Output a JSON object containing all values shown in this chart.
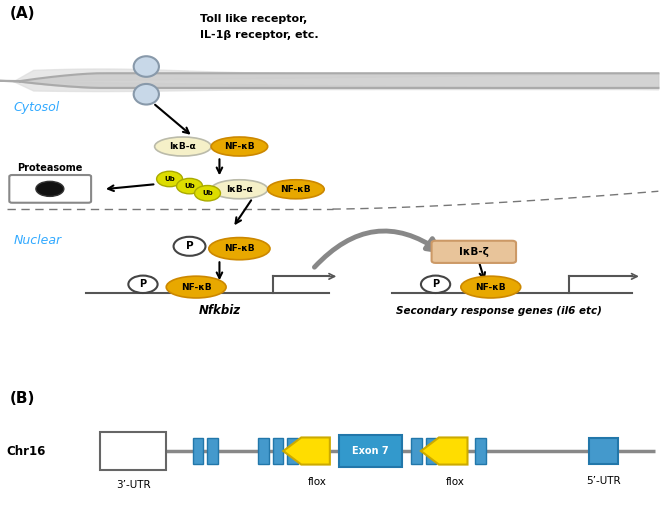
{
  "fig_width": 6.65,
  "fig_height": 5.21,
  "dpi": 100,
  "bg_color": "#ffffff",
  "panel_A_label": "(A)",
  "panel_B_label": "(B)",
  "cytosol_label": "Cytosol",
  "nuclear_label": "Nuclear",
  "proteasome_label": "Proteasome",
  "receptor_text1": "Toll like receptor,",
  "receptor_text2": "IL-1β receptor, etc.",
  "nfkb_color": "#E8A800",
  "ikba_color": "#F5F0C8",
  "ub_color": "#DDDD00",
  "ikbz_color": "#E8C49A",
  "p_color": "#ffffff",
  "blue_exon_color": "#4499CC",
  "yellow_arrow_color": "#FFDD00",
  "exon7_color": "#3399CC",
  "nfkbiz_label": "Nfkbiz",
  "secondary_label": "Secondary response genes (il6 etc)",
  "chr_label": "Chr16",
  "utr3_label": "3’-UTR",
  "utr5_label": "5’-UTR",
  "flox_label": "flox",
  "exon7_label": "Exon 7"
}
